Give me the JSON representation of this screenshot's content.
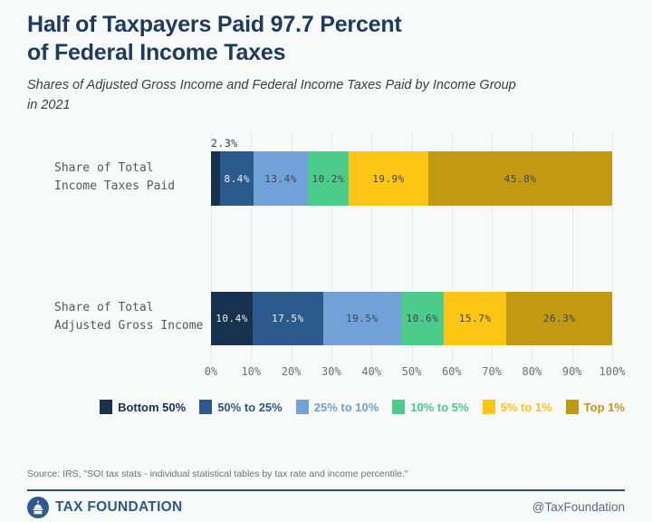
{
  "header": {
    "title": "Half of Taxpayers Paid 97.7 Percent\nof Federal Income Taxes",
    "subtitle": "Shares of Adjusted Gross Income and Federal Income Taxes Paid by Income Group\nin 2021"
  },
  "chart_data": {
    "type": "bar",
    "orientation": "horizontal",
    "stacked": true,
    "unit": "%",
    "title": "Half of Taxpayers Paid 97.7 Percent of Federal Income Taxes",
    "subtitle": "Shares of Adjusted Gross Income and Federal Income Taxes Paid by Income Group in 2021",
    "categories": [
      "Share of Total Income Taxes Paid",
      "Share of Total Adjusted Gross Income"
    ],
    "categories_display": [
      "Share of Total\nIncome Taxes Paid",
      "Share of Total\nAdjusted Gross Income"
    ],
    "series": [
      {
        "name": "Bottom 50%",
        "color": "#17314f",
        "label_color": "#e9eef5",
        "values": [
          2.3,
          10.4
        ]
      },
      {
        "name": "50% to 25%",
        "color": "#2d5a8c",
        "label_color": "#eef2f7",
        "values": [
          8.4,
          17.5
        ]
      },
      {
        "name": "25% to 10%",
        "color": "#71a1d6",
        "label_color": "#3c4450",
        "values": [
          13.4,
          19.5
        ]
      },
      {
        "name": "10% to 5%",
        "color": "#4ccb8b",
        "label_color": "#3c4450",
        "values": [
          10.2,
          10.6
        ]
      },
      {
        "name": "5% to 1%",
        "color": "#fdc514",
        "label_color": "#3c4450",
        "values": [
          19.9,
          15.7
        ]
      },
      {
        "name": "Top 1%",
        "color": "#c19a12",
        "label_color": "#3c4450",
        "values": [
          45.8,
          26.3
        ]
      }
    ],
    "x_ticks": [
      "0%",
      "10%",
      "20%",
      "30%",
      "40%",
      "50%",
      "60%",
      "70%",
      "80%",
      "90%",
      "100%"
    ],
    "xlim": [
      0,
      100
    ],
    "grid": true,
    "legend_position": "bottom"
  },
  "source": "Source: IRS, \"SOI tax stats - individual statistical tables by tax rate and income percentile.\"",
  "footer": {
    "brand": "TAX FOUNDATION",
    "handle": "@TaxFoundation"
  }
}
